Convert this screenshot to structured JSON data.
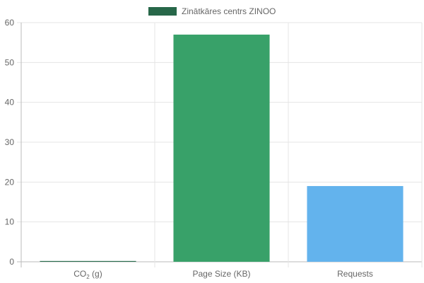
{
  "chart_data": {
    "type": "bar",
    "title": "",
    "xlabel": "",
    "ylabel": "",
    "legend_position": "top-center",
    "grid": true,
    "ylim": [
      0,
      60
    ],
    "y_ticks": [
      "0",
      "10",
      "20",
      "30",
      "40",
      "50",
      "60"
    ],
    "categories": [
      {
        "main": "CO",
        "sub": "2",
        "suffix": " (g)"
      },
      {
        "main": "Page Size (KB)",
        "sub": "",
        "suffix": ""
      },
      {
        "main": "Requests",
        "sub": "",
        "suffix": ""
      }
    ],
    "series": [
      {
        "name": "Zinātkāres centrs ZINOO",
        "values": [
          0.2,
          57,
          19
        ],
        "colors": [
          "#2a6e4e",
          "#38a169",
          "#63b3ed"
        ],
        "legend_color": "#276749"
      }
    ],
    "colors": {
      "grid": "#e5e5e5",
      "axis": "#bbbbbb",
      "text": "#666666"
    }
  }
}
